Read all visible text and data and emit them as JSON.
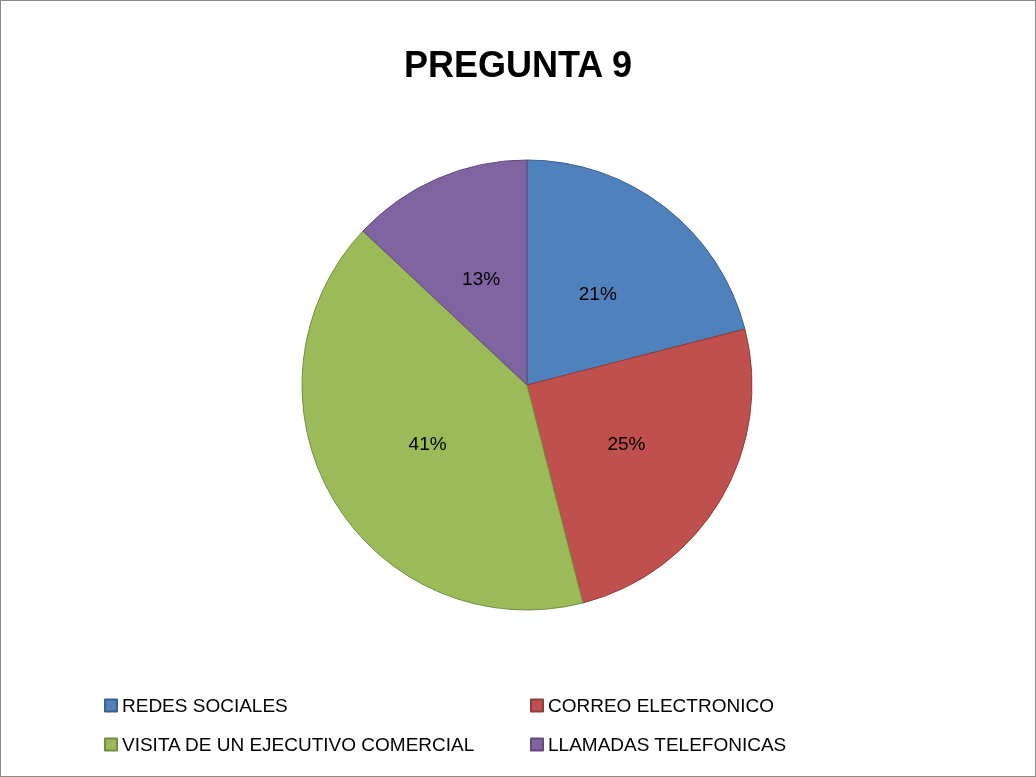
{
  "chart_data": {
    "type": "pie",
    "title": "PREGUNTA 9",
    "categories": [
      "REDES SOCIALES",
      "CORREO ELECTRONICO",
      "VISITA DE UN EJECUTIVO COMERCIAL",
      "LLAMADAS TELEFONICAS"
    ],
    "values": [
      21,
      25,
      41,
      13
    ],
    "colors": [
      "#4f81bd",
      "#c0504d",
      "#9bbb59",
      "#8064a2"
    ],
    "value_labels": [
      "21%",
      "25%",
      "41%",
      "13%"
    ],
    "legend": "bottom"
  }
}
